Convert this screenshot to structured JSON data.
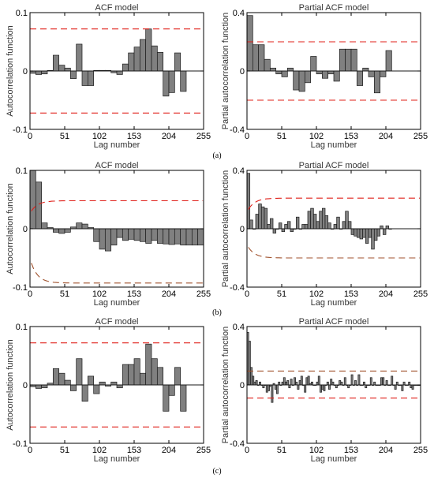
{
  "colors": {
    "bar_fill": "#808080",
    "bar_stroke": "#1a1a1a",
    "bound_red": "#e0201a",
    "bound_brown": "#a0522d"
  },
  "panel_labels": [
    "(a)",
    "(b)",
    "(c)"
  ],
  "chart_data": [
    {
      "type": "bar",
      "panel": "(a)",
      "title": "ACF model",
      "xlabel": "Lag number",
      "ylabel": "Autocorrelation function",
      "xlim": [
        0,
        255
      ],
      "ylim": [
        -0.1,
        0.1
      ],
      "xticks": [
        0,
        51,
        102,
        153,
        204,
        255
      ],
      "yticks": [
        -0.1,
        0,
        0.1
      ],
      "ytick_labels": [
        "-0.1",
        "0",
        "0.1"
      ],
      "bin_width": 8.5,
      "values": [
        -0.004,
        -0.006,
        -0.005,
        0.001,
        0.027,
        0.01,
        0.005,
        -0.013,
        0.046,
        -0.025,
        -0.025,
        0.001,
        0.001,
        0.001,
        -0.003,
        -0.006,
        0.012,
        0.031,
        0.041,
        0.054,
        0.072,
        0.043,
        0.032,
        -0.043,
        -0.037,
        0.031,
        -0.035
      ],
      "bounds": {
        "style": "flat",
        "upper": 0.072,
        "lower": -0.072,
        "color": "red"
      }
    },
    {
      "type": "bar",
      "panel": "(a)",
      "title": "Partial ACF model",
      "xlabel": "Lag number",
      "ylabel": "Partial autocorrelation function",
      "xlim": [
        0,
        255
      ],
      "ylim": [
        -0.4,
        0.4
      ],
      "xticks": [
        0,
        51,
        102,
        153,
        204,
        255
      ],
      "yticks": [
        -0.4,
        0,
        0.4
      ],
      "ytick_labels": [
        "-0.4",
        "0",
        "0.4"
      ],
      "bin_width": 8.5,
      "values": [
        0.38,
        0.18,
        0.18,
        0.08,
        0.02,
        -0.02,
        -0.04,
        0.02,
        -0.13,
        -0.14,
        -0.08,
        0.1,
        -0.02,
        -0.05,
        -0.02,
        -0.07,
        0.15,
        0.15,
        0.15,
        -0.1,
        0.02,
        -0.04,
        -0.15,
        -0.04,
        0.14
      ],
      "bounds": {
        "style": "flat",
        "upper": 0.2,
        "lower": -0.2,
        "color": "red"
      }
    },
    {
      "type": "bar",
      "panel": "(b)",
      "title": "ACF model",
      "xlabel": "Lag number",
      "ylabel": "Autocorrelation function",
      "xlim": [
        0,
        255
      ],
      "ylim": [
        -0.1,
        0.1
      ],
      "xticks": [
        0,
        51,
        102,
        153,
        204,
        255
      ],
      "yticks": [
        -0.1,
        0,
        0.1
      ],
      "ytick_labels": [
        "-0.1",
        "0",
        "0.1"
      ],
      "bin_width": 8.5,
      "values": [
        0.1,
        0.08,
        0.01,
        0.002,
        -0.006,
        -0.008,
        -0.006,
        0.003,
        0.01,
        0.008,
        0.002,
        -0.022,
        -0.035,
        -0.038,
        -0.028,
        -0.015,
        -0.02,
        -0.018,
        -0.02,
        -0.022,
        -0.025,
        -0.02,
        -0.025,
        -0.026,
        -0.027,
        -0.026,
        -0.028,
        -0.028,
        -0.028,
        -0.028
      ],
      "bounds": {
        "style": "curved",
        "upper_plateau": 0.048,
        "lower_plateau": -0.093,
        "color": "red-brown"
      }
    },
    {
      "type": "bar",
      "panel": "(b)",
      "title": "Partial ACF model",
      "xlabel": "Lag number",
      "ylabel": "Partial autocorrelation function",
      "xlim": [
        0,
        255
      ],
      "ylim": [
        -0.4,
        0.4
      ],
      "xticks": [
        0,
        51,
        102,
        153,
        204,
        255
      ],
      "yticks": [
        -0.4,
        0,
        0.4
      ],
      "ytick_labels": [
        "-0.4",
        "0",
        "0.4"
      ],
      "bin_width": 4.25,
      "values": [
        0.38,
        0.06,
        0.0,
        0.1,
        0.17,
        0.15,
        0.14,
        0.03,
        0.07,
        -0.03,
        0.0,
        0.04,
        -0.02,
        0.03,
        0.05,
        -0.02,
        0.0,
        0.08,
        0.0,
        0.03,
        0.03,
        0.12,
        0.14,
        0.1,
        0.05,
        0.12,
        0.14,
        0.09,
        0.04,
        0.0,
        0.03,
        0.08,
        0.0,
        0.05,
        0.12,
        0.05,
        -0.04,
        -0.05,
        -0.06,
        -0.07,
        -0.06,
        -0.1,
        -0.06,
        -0.14,
        -0.08,
        -0.05,
        0.02,
        -0.04,
        0.02,
        0.0
      ],
      "bounds": {
        "style": "curved",
        "upper_plateau": 0.21,
        "lower_plateau": -0.2,
        "color": "red-brown"
      }
    },
    {
      "type": "bar",
      "panel": "(c)",
      "title": "ACF model",
      "xlabel": "Lag number",
      "ylabel": "Autocorrelation function",
      "xlim": [
        0,
        255
      ],
      "ylim": [
        -0.1,
        0.1
      ],
      "xticks": [
        0,
        51,
        102,
        153,
        204,
        255
      ],
      "yticks": [
        -0.1,
        0,
        0.1
      ],
      "ytick_labels": [
        "-0.1",
        "0",
        "0.1"
      ],
      "bin_width": 8.5,
      "values": [
        -0.003,
        -0.006,
        -0.005,
        0.003,
        0.028,
        0.02,
        0.008,
        -0.01,
        0.045,
        -0.028,
        0.015,
        -0.015,
        0.005,
        -0.002,
        0.005,
        -0.005,
        0.035,
        0.035,
        0.045,
        0.02,
        0.07,
        0.045,
        0.03,
        -0.045,
        -0.018,
        0.03,
        -0.045
      ],
      "bounds": {
        "style": "flat",
        "upper": 0.072,
        "lower": -0.072,
        "color": "red"
      }
    },
    {
      "type": "bar",
      "panel": "(c)",
      "title": "Partial ACF model",
      "xlabel": "Lag number",
      "ylabel": "Partial autocorrelation function",
      "xlim": [
        0,
        255
      ],
      "ylim": [
        -0.4,
        0.4
      ],
      "xticks": [
        0,
        51,
        102,
        153,
        204,
        255
      ],
      "yticks": [
        -0.4,
        0,
        0.4
      ],
      "ytick_labels": [
        "-0.4",
        "0",
        "0.4"
      ],
      "bin_width": 2.55,
      "values": [
        0.36,
        0.3,
        0.12,
        0.06,
        0.02,
        0.03,
        0.0,
        0.02,
        0.0,
        -0.02,
        0.0,
        -0.05,
        -0.04,
        -0.01,
        -0.12,
        0.01,
        -0.03,
        -0.06,
        0.02,
        0.0,
        0.02,
        0.05,
        0.02,
        0.03,
        -0.02,
        0.04,
        0.0,
        0.05,
        0.02,
        -0.03,
        0.03,
        0.06,
        0.0,
        -0.05,
        0.05,
        0.06,
        0.01,
        0.02,
        0.0,
        0.0,
        0.02,
        0.06,
        -0.05,
        -0.03,
        -0.04,
        0.0,
        0.02,
        -0.03,
        0.04,
        0.02,
        0.0,
        -0.02,
        0.0,
        0.03,
        0.02,
        0.0,
        0.05,
        0.0,
        -0.02,
        0.0,
        0.07,
        0.0,
        0.03,
        0.0,
        0.07,
        0.0,
        0.0,
        0.02,
        -0.02,
        0.0,
        0.0,
        0.05,
        0.0,
        0.02,
        0.0,
        0.0,
        0.0,
        0.05,
        0.05,
        0.0,
        0.03,
        0.0,
        0.0,
        0.06,
        0.0,
        -0.03,
        0.02,
        0.0,
        0.0,
        -0.04,
        0.02,
        0.0,
        0.0,
        0.02,
        -0.02,
        -0.03,
        0.0,
        0.0,
        0.0,
        0.0
      ],
      "bounds": {
        "style": "flat",
        "upper": 0.095,
        "lower": -0.09,
        "color": "red-brown"
      }
    }
  ]
}
